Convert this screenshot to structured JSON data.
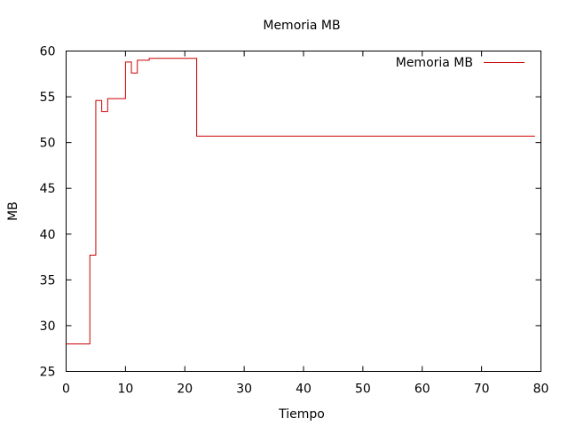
{
  "chart_data": {
    "type": "line",
    "step": true,
    "title": "Memoria MB",
    "xlabel": "Tiempo",
    "ylabel": "MB",
    "xlim": [
      0,
      80
    ],
    "ylim": [
      25,
      60
    ],
    "xticks": [
      0,
      10,
      20,
      30,
      40,
      50,
      60,
      70,
      80
    ],
    "yticks": [
      25,
      30,
      35,
      40,
      45,
      50,
      55,
      60
    ],
    "grid": false,
    "legend_position": "top-right",
    "series": [
      {
        "name": "Memoria MB",
        "color": "#cc0000",
        "x": [
          0,
          4,
          5,
          6,
          7,
          10,
          11,
          12,
          14,
          22,
          79
        ],
        "y": [
          28.0,
          37.7,
          54.6,
          53.4,
          54.8,
          58.8,
          57.6,
          59.0,
          59.2,
          50.7,
          50.7
        ]
      }
    ]
  }
}
